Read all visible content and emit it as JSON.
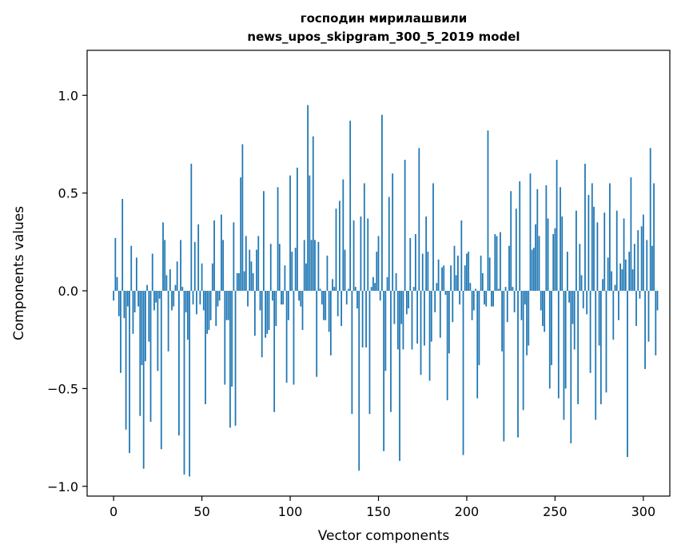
{
  "chart_data": {
    "type": "bar",
    "title": "господин мирилашвили",
    "subtitle": "news_upos_skipgram_300_5_2019 model",
    "xlabel": "Vector components",
    "ylabel": "Components values",
    "xlim": [
      -15,
      315
    ],
    "ylim": [
      -1.05,
      1.23
    ],
    "x_ticks": [
      0,
      50,
      100,
      150,
      200,
      250,
      300
    ],
    "y_ticks": [
      -1.0,
      -0.5,
      0.0,
      0.5,
      1.0
    ],
    "x_tick_labels": [
      "0",
      "50",
      "100",
      "150",
      "200",
      "250",
      "300"
    ],
    "y_tick_labels": [
      "−1.0",
      "−0.5",
      "0.0",
      "0.5",
      "1.0"
    ],
    "grid": false,
    "bar_color": "#1f77b4",
    "values": [
      -0.05,
      0.27,
      0.07,
      -0.13,
      -0.42,
      0.47,
      -0.14,
      -0.71,
      -0.08,
      -0.83,
      0.23,
      -0.22,
      -0.11,
      0.17,
      -0.08,
      -0.64,
      -0.38,
      -0.91,
      -0.36,
      0.03,
      -0.26,
      -0.67,
      0.19,
      -0.1,
      -0.06,
      -0.41,
      -0.04,
      -0.81,
      0.35,
      0.26,
      0.08,
      -0.31,
      0.11,
      -0.1,
      -0.08,
      0.03,
      0.15,
      -0.74,
      0.26,
      0.02,
      -0.94,
      -0.11,
      -0.25,
      -0.95,
      0.65,
      -0.07,
      0.25,
      -0.12,
      0.34,
      -0.07,
      0.14,
      -0.1,
      -0.58,
      -0.22,
      -0.2,
      -0.15,
      0.14,
      0.36,
      -0.18,
      -0.08,
      -0.05,
      0.39,
      0.26,
      -0.48,
      -0.15,
      -0.15,
      -0.7,
      -0.49,
      0.35,
      -0.69,
      0.09,
      0.09,
      0.58,
      0.75,
      0.1,
      0.28,
      -0.08,
      0.21,
      0.15,
      0.09,
      -0.23,
      0.21,
      0.28,
      -0.1,
      -0.34,
      0.51,
      -0.24,
      -0.22,
      -0.2,
      0.24,
      -0.05,
      -0.62,
      -0.18,
      0.53,
      0.24,
      -0.07,
      -0.07,
      0.13,
      -0.47,
      -0.15,
      0.59,
      0.2,
      -0.48,
      0.22,
      0.63,
      -0.05,
      -0.08,
      -0.2,
      0.26,
      0.14,
      0.95,
      0.59,
      0.26,
      0.79,
      0.26,
      -0.44,
      0.25,
      0.01,
      -0.07,
      -0.15,
      -0.15,
      0.18,
      -0.21,
      -0.33,
      0.06,
      0.02,
      0.42,
      -0.13,
      0.46,
      -0.18,
      0.57,
      0.21,
      -0.07,
      0.01,
      0.87,
      -0.63,
      0.36,
      0.02,
      -0.09,
      -0.92,
      0.38,
      -0.29,
      0.55,
      -0.29,
      0.37,
      -0.63,
      0.02,
      0.07,
      0.04,
      0.2,
      0.28,
      -0.05,
      0.9,
      -0.82,
      -0.41,
      0.07,
      0.48,
      -0.62,
      0.6,
      -0.17,
      0.09,
      -0.3,
      -0.87,
      -0.17,
      -0.3,
      0.67,
      -0.12,
      -0.09,
      0.27,
      -0.3,
      0.02,
      0.29,
      -0.27,
      0.73,
      -0.43,
      0.19,
      -0.28,
      0.38,
      0.2,
      -0.46,
      -0.26,
      0.55,
      -0.11,
      0.04,
      0.16,
      -0.24,
      0.12,
      0.13,
      -0.02,
      -0.56,
      -0.32,
      0.13,
      -0.16,
      0.23,
      0.08,
      0.18,
      -0.07,
      0.36,
      -0.84,
      0.13,
      0.19,
      0.2,
      0.04,
      -0.15,
      -0.1,
      0.01,
      -0.55,
      -0.38,
      0.18,
      0.09,
      -0.07,
      -0.08,
      0.82,
      0.17,
      -0.08,
      -0.08,
      0.29,
      0.28,
      0.01,
      0.3,
      -0.31,
      -0.77,
      0.02,
      -0.16,
      0.23,
      0.51,
      0.02,
      -0.11,
      0.42,
      -0.75,
      0.56,
      -0.15,
      -0.61,
      -0.07,
      -0.33,
      -0.28,
      0.6,
      0.21,
      0.22,
      0.34,
      0.52,
      0.28,
      -0.1,
      -0.18,
      -0.21,
      0.54,
      0.37,
      -0.5,
      -0.38,
      0.29,
      0.32,
      0.67,
      -0.55,
      0.53,
      0.38,
      -0.66,
      -0.5,
      0.2,
      -0.06,
      -0.78,
      -0.17,
      -0.3,
      0.41,
      -0.58,
      0.24,
      0.08,
      -0.09,
      0.65,
      -0.12,
      0.49,
      -0.42,
      0.55,
      0.43,
      -0.66,
      0.35,
      -0.28,
      -0.58,
      0.06,
      0.4,
      -0.52,
      0.17,
      0.55,
      0.1,
      -0.25,
      0.03,
      0.41,
      -0.15,
      0.14,
      0.11,
      0.37,
      0.16,
      -0.85,
      0.2,
      0.58,
      0.11,
      0.24,
      -0.18,
      0.31,
      -0.04,
      0.33,
      0.39,
      -0.4,
      0.26,
      -0.26,
      0.73,
      0.23,
      0.55,
      -0.33,
      -0.1
    ]
  }
}
